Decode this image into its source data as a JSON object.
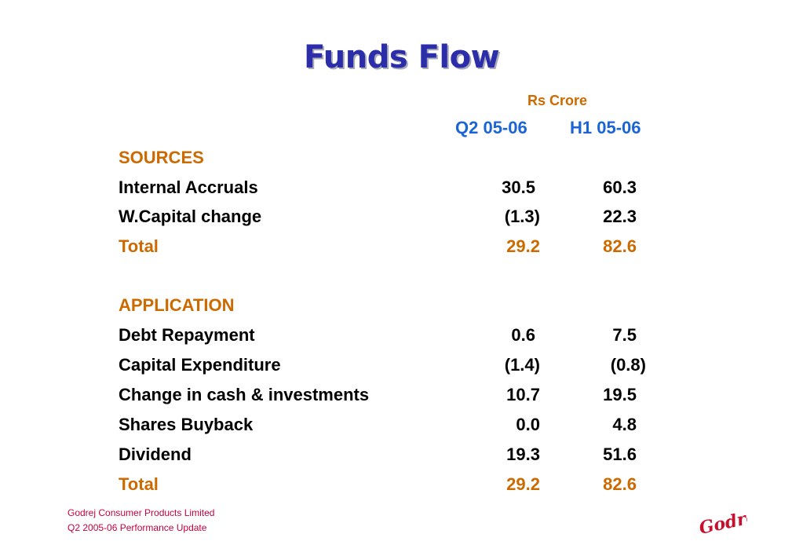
{
  "title": "Funds Flow",
  "unit": "Rs Crore",
  "columns": [
    "Q2 05-06",
    "H1 05-06"
  ],
  "rows": [
    {
      "type": "section",
      "label": "SOURCES",
      "q2": "",
      "h1": ""
    },
    {
      "type": "item",
      "label": "Internal Accruals",
      "q2": "30.5",
      "h1": "60.3"
    },
    {
      "type": "item",
      "label": "W.Capital change",
      "q2": "(1.3)",
      "h1": "22.3"
    },
    {
      "type": "total",
      "label": "Total",
      "q2": "29.2",
      "h1": "82.6"
    },
    {
      "type": "section",
      "label": "APPLICATION",
      "q2": "",
      "h1": ""
    },
    {
      "type": "item",
      "label": "Debt Repayment",
      "q2": "0.6",
      "h1": "7.5"
    },
    {
      "type": "item",
      "label": "Capital Expenditure",
      "q2": "(1.4)",
      "h1": "(0.8)"
    },
    {
      "type": "item",
      "label": "Change in cash & investments",
      "q2": "10.7",
      "h1": "19.5"
    },
    {
      "type": "item",
      "label": "Shares Buyback",
      "q2": "0.0",
      "h1": "4.8"
    },
    {
      "type": "item",
      "label": "Dividend",
      "q2": "19.3",
      "h1": "51.6"
    },
    {
      "type": "total",
      "label": "Total",
      "q2": "29.2",
      "h1": "82.6"
    }
  ],
  "footer": {
    "company": "Godrej Consumer Products Limited",
    "subtitle": "Q2 2005-06 Performance Update"
  },
  "logo": {
    "text": "Godrej",
    "color": "#c8102e"
  },
  "colors": {
    "title": "#2b2ea8",
    "accent": "#cc6a00",
    "column_header": "#1a64d6",
    "footer": "#c8003c"
  }
}
